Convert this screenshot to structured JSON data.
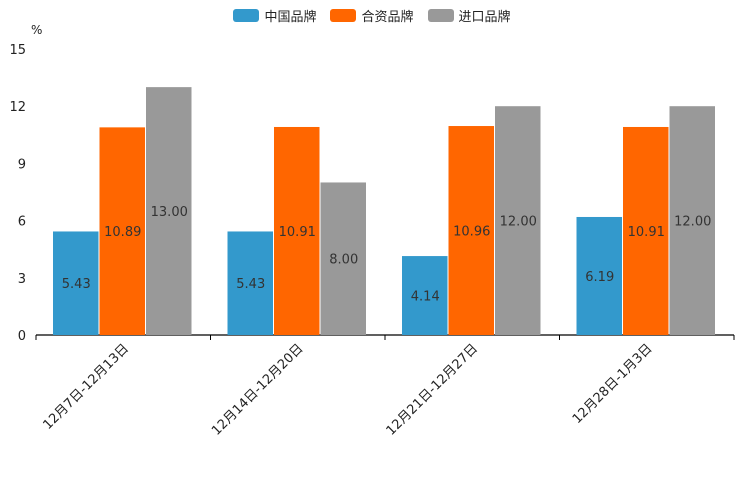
{
  "chart_data": {
    "type": "bar",
    "title": "",
    "xlabel": "",
    "ylabel": "%",
    "ylim": [
      0,
      15
    ],
    "yticks": [
      0,
      3,
      6,
      9,
      12,
      15
    ],
    "categories": [
      "12月7日-12月13日",
      "12月14日-12月20日",
      "12月21日-12月27日",
      "12月28日-1月3日"
    ],
    "series": [
      {
        "name": "中国品牌",
        "color": "#3399cc",
        "values": [
          5.43,
          5.43,
          4.14,
          6.19
        ],
        "labels": [
          "5.43",
          "5.43",
          "4.14",
          "6.19"
        ]
      },
      {
        "name": "合资品牌",
        "color": "#ff6600",
        "values": [
          10.89,
          10.91,
          10.96,
          10.91
        ],
        "labels": [
          "10.89",
          "10.91",
          "10.96",
          "10.91"
        ]
      },
      {
        "name": "进口品牌",
        "color": "#999999",
        "values": [
          13.0,
          8.0,
          12.0,
          12.0
        ],
        "labels": [
          "13.00",
          "8.00",
          "12.00",
          "12.00"
        ]
      }
    ],
    "legend_position": "top-center"
  }
}
